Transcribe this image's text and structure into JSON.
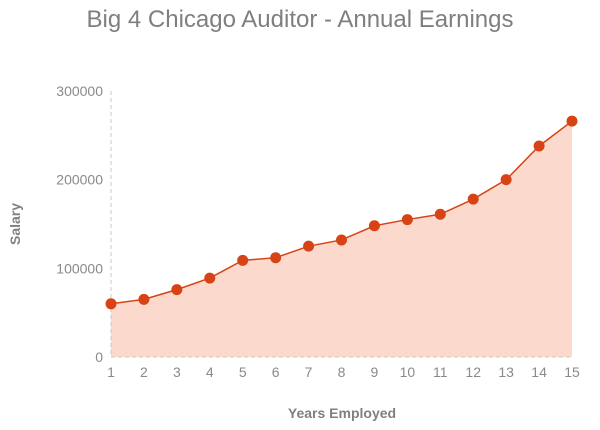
{
  "chart_data": {
    "type": "area",
    "title": "Big 4 Chicago Auditor - Annual Earnings",
    "xlabel": "Years Employed",
    "ylabel": "Salary",
    "x": [
      1,
      2,
      3,
      4,
      5,
      6,
      7,
      8,
      9,
      10,
      11,
      12,
      13,
      14,
      15
    ],
    "series": [
      {
        "values": [
          60000,
          65000,
          76000,
          89000,
          109000,
          112000,
          125000,
          132000,
          148000,
          155000,
          161000,
          178000,
          200000,
          238000,
          266000
        ]
      }
    ],
    "ylim": [
      0,
      300000
    ],
    "yticks": [
      0,
      100000,
      200000,
      300000
    ],
    "xticks": [
      1,
      2,
      3,
      4,
      5,
      6,
      7,
      8,
      9,
      10,
      11,
      12,
      13,
      14,
      15
    ],
    "grid": false,
    "colors": {
      "line": "#d84315",
      "marker": "#d84315",
      "fill": "#fbd9cd",
      "axis": "#c8c8c8",
      "title": "#7f7f7f",
      "tick_text": "#8a8a8a"
    }
  }
}
